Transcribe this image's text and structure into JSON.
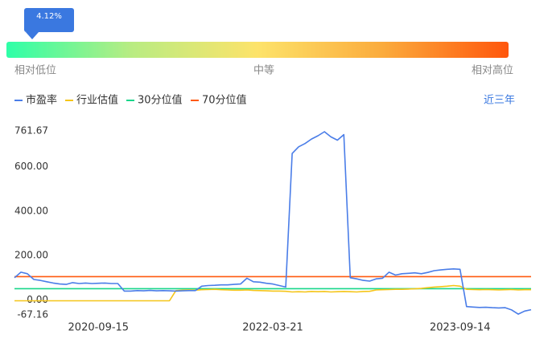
{
  "chart_data": {
    "type": "line",
    "percentile": {
      "value": 4.12,
      "label": "4.12%"
    },
    "scale_labels": [
      "相对低位",
      "中等",
      "相对高位"
    ],
    "period": "近三年",
    "categories": [
      null,
      null,
      null,
      null,
      null,
      null,
      null,
      null,
      null,
      null,
      null,
      null,
      null,
      "2020-09-15",
      null,
      null,
      null,
      null,
      null,
      null,
      null,
      null,
      null,
      null,
      null,
      null,
      null,
      null,
      null,
      null,
      null,
      null,
      null,
      null,
      null,
      null,
      null,
      null,
      null,
      null,
      "2022-03-21",
      null,
      null,
      null,
      null,
      null,
      null,
      null,
      null,
      null,
      null,
      null,
      null,
      null,
      null,
      null,
      null,
      null,
      null,
      null,
      null,
      null,
      null,
      null,
      null,
      null,
      null,
      null,
      null,
      "2023-09-14",
      null,
      null,
      null,
      null,
      null,
      null,
      null,
      null,
      null,
      null,
      null
    ],
    "ylim": [
      -67.16,
      761.67
    ],
    "yticks": [
      761.67,
      {
        "value": 600,
        "label": "600.00"
      },
      {
        "value": 400,
        "label": "400.00"
      },
      {
        "value": 200,
        "label": "200.00"
      },
      {
        "value": 0,
        "label": "0.00"
      },
      -67.16
    ],
    "series": [
      {
        "name": "市盈率",
        "color": "#4a7de8",
        "values": [
          100,
          125,
          118,
          92,
          88,
          82,
          76,
          72,
          70,
          78,
          74,
          76,
          74,
          75,
          76,
          74,
          74,
          40,
          40,
          42,
          41,
          43,
          41,
          42,
          41,
          40,
          41,
          42,
          42,
          62,
          65,
          66,
          68,
          68,
          70,
          72,
          98,
          82,
          80,
          75,
          72,
          65,
          58,
          660,
          690,
          705,
          725,
          740,
          758,
          735,
          720,
          745,
          100,
          95,
          88,
          85,
          95,
          98,
          125,
          112,
          118,
          120,
          122,
          118,
          124,
          132,
          135,
          138,
          140,
          138,
          -30,
          -32,
          -34,
          -33,
          -35,
          -36,
          -35,
          -45,
          -64,
          -50,
          -44
        ]
      },
      {
        "name": "行业估值",
        "color": "#f5c518",
        "values": [
          -4,
          -4,
          -4,
          -4,
          -4,
          -4,
          -4,
          -4,
          -4,
          -4,
          -4,
          -4,
          -4,
          -4,
          -4,
          -4,
          -4,
          -4,
          -4,
          -4,
          -4,
          -4,
          -4,
          -4,
          -4,
          42,
          44,
          45,
          44,
          46,
          47,
          48,
          46,
          45,
          44,
          44,
          45,
          43,
          42,
          41,
          40,
          40,
          39,
          36,
          37,
          36,
          38,
          37,
          38,
          36,
          37,
          38,
          37,
          36,
          38,
          39,
          45,
          46,
          47,
          48,
          48,
          49,
          50,
          52,
          55,
          58,
          60,
          62,
          65,
          62,
          48,
          47,
          46,
          47,
          46,
          45,
          46,
          47,
          45,
          46,
          46
        ]
      },
      {
        "name": "30分位值",
        "color": "#19d68a",
        "values": [
          51,
          51,
          51,
          51,
          51,
          51,
          51,
          51,
          51,
          51,
          51,
          51,
          51,
          51,
          51,
          51,
          51,
          51,
          51,
          51,
          51,
          51,
          51,
          51,
          51,
          51,
          51,
          51,
          51,
          51,
          51,
          51,
          51,
          51,
          51,
          51,
          51,
          51,
          51,
          51,
          51,
          51,
          51,
          51,
          51,
          51,
          51,
          51,
          51,
          51,
          51,
          51,
          51,
          51,
          51,
          51,
          51,
          51,
          51,
          51,
          51,
          51,
          51,
          51,
          51,
          51,
          51,
          51,
          51,
          51,
          51,
          51,
          51,
          51,
          51,
          51,
          51,
          51,
          51,
          51,
          51
        ]
      },
      {
        "name": "70分位值",
        "color": "#ff5a0f",
        "values": [
          105,
          105,
          105,
          105,
          105,
          105,
          105,
          105,
          105,
          105,
          105,
          105,
          105,
          105,
          105,
          105,
          105,
          105,
          105,
          105,
          105,
          105,
          105,
          105,
          105,
          105,
          105,
          105,
          105,
          105,
          105,
          105,
          105,
          105,
          105,
          105,
          105,
          105,
          105,
          105,
          105,
          105,
          105,
          105,
          105,
          105,
          105,
          105,
          105,
          105,
          105,
          105,
          105,
          105,
          105,
          105,
          105,
          105,
          105,
          105,
          105,
          105,
          105,
          105,
          105,
          105,
          105,
          105,
          105,
          105,
          105,
          105,
          105,
          105,
          105,
          105,
          105,
          105,
          105,
          105,
          105
        ]
      }
    ]
  }
}
